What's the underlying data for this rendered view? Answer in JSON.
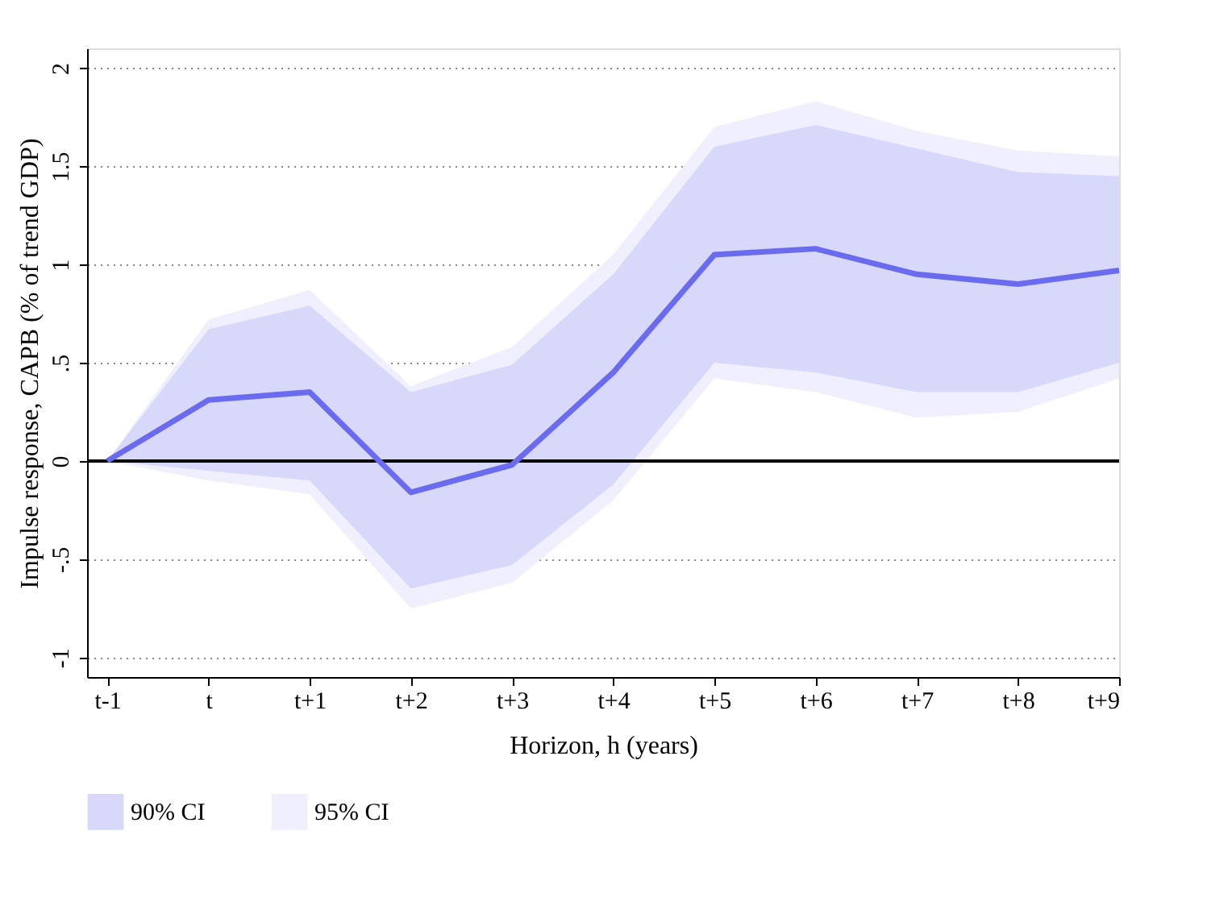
{
  "chart_data": {
    "type": "line",
    "xlabel": "Horizon,  h (years)",
    "ylabel": "Impulse response, CAPB (% of trend GDP)",
    "categories": [
      "t-1",
      "t",
      "t+1",
      "t+2",
      "t+3",
      "t+4",
      "t+5",
      "t+6",
      "t+7",
      "t+8",
      "t+9"
    ],
    "series": [
      {
        "color": "#6b6bf0",
        "values": [
          0,
          0.31,
          0.35,
          -0.16,
          -0.02,
          0.45,
          1.05,
          1.08,
          0.95,
          0.9,
          0.97
        ]
      },
      {
        "name": "90% CI",
        "color": "#d8d8fb",
        "values": [
          null,
          null,
          null,
          null,
          null,
          null,
          null,
          null,
          null,
          null,
          null
        ],
        "lower": [
          0,
          -0.05,
          -0.1,
          -0.65,
          -0.53,
          -0.12,
          0.5,
          0.45,
          0.35,
          0.35,
          0.5
        ],
        "upper": [
          0,
          0.67,
          0.79,
          0.35,
          0.49,
          0.95,
          1.6,
          1.71,
          1.59,
          1.47,
          1.45
        ]
      },
      {
        "name": "95% CI",
        "color": "#efeffd",
        "values": [
          null,
          null,
          null,
          null,
          null,
          null,
          null,
          null,
          null,
          null,
          null
        ],
        "lower": [
          0,
          -0.1,
          -0.17,
          -0.75,
          -0.62,
          -0.2,
          0.42,
          0.35,
          0.22,
          0.25,
          0.42
        ],
        "upper": [
          0,
          0.72,
          0.87,
          0.38,
          0.58,
          1.05,
          1.7,
          1.83,
          1.68,
          1.58,
          1.55
        ]
      }
    ],
    "ylim": [
      -1.1,
      2.1
    ],
    "yticks": [
      {
        "value": -1,
        "label": "-1"
      },
      {
        "value": -0.5,
        "label": "-.5"
      },
      0,
      {
        "value": 0.5,
        "label": ".5"
      },
      1,
      {
        "value": 1.5,
        "label": "1.5"
      },
      2
    ],
    "ref_lines": [
      {
        "axis": "y",
        "value": 0,
        "color": "#000000"
      }
    ],
    "grid": "y",
    "legend": "bottom"
  }
}
